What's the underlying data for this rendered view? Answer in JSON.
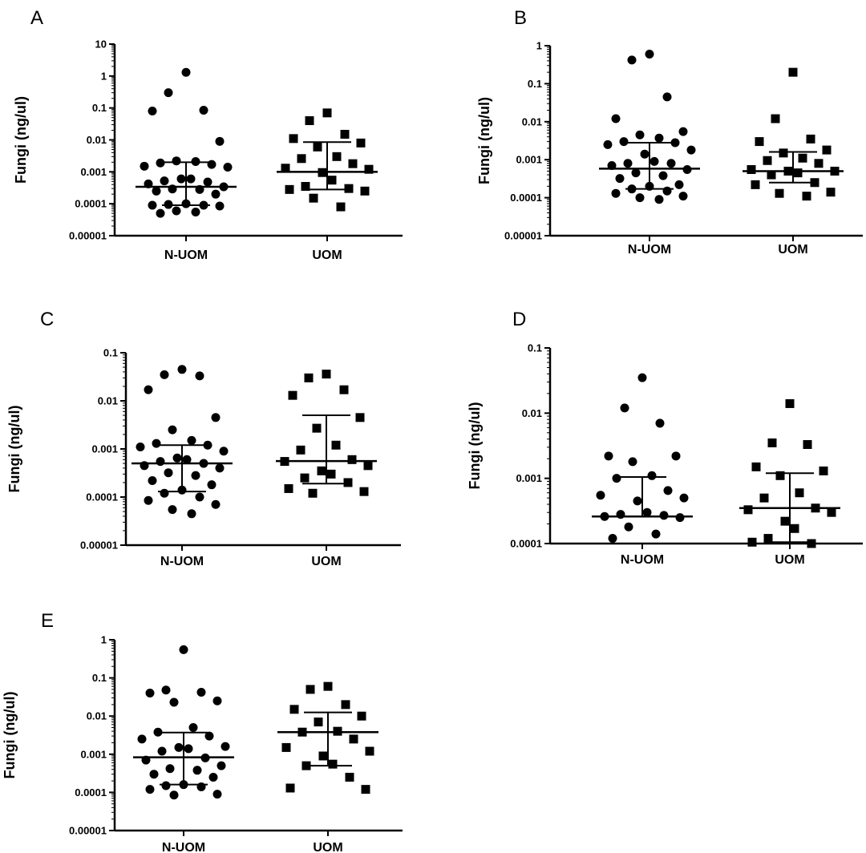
{
  "chart_data": [
    {
      "panel": "A",
      "type": "scatter",
      "ylabel": "Fungi (ng/ul)",
      "yscale": "log",
      "ylim": [
        1e-05,
        10
      ],
      "yticks": [
        "0.00001",
        "0.0001",
        "0.001",
        "0.01",
        "0.1",
        "1",
        "10"
      ],
      "categories": [
        "N-UOM",
        "UOM"
      ],
      "series": [
        {
          "marker": "circle",
          "values": [
            1.3,
            0.3,
            0.085,
            0.08,
            0.009,
            0.0022,
            0.0021,
            0.0019,
            0.0017,
            0.0015,
            0.0014,
            0.0006,
            0.0006,
            0.00052,
            0.00048,
            0.00042,
            0.00034,
            0.00029,
            0.00028,
            0.00025,
            0.0002,
            0.0001,
            9.5e-05,
            9e-05,
            9e-05,
            8.5e-05,
            6e-05,
            5.5e-05,
            5e-05
          ],
          "median": 0.00034,
          "q1": 9e-05,
          "q3": 0.002
        },
        {
          "marker": "square",
          "values": [
            0.07,
            0.04,
            0.015,
            0.011,
            0.008,
            0.006,
            0.003,
            0.0026,
            0.0018,
            0.0013,
            0.0012,
            0.00095,
            0.00055,
            0.00035,
            0.0003,
            0.00028,
            0.00025,
            0.00015,
            8e-05
          ],
          "median": 0.001,
          "q1": 0.00028,
          "q3": 0.0085
        }
      ]
    },
    {
      "panel": "B",
      "type": "scatter",
      "ylabel": "Fungi (ng/ul)",
      "yscale": "log",
      "ylim": [
        1e-05,
        1
      ],
      "yticks": [
        "0.00001",
        "0.0001",
        "0.001",
        "0.01",
        "0.1",
        "1"
      ],
      "categories": [
        "N-UOM",
        "UOM"
      ],
      "series": [
        {
          "marker": "circle",
          "values": [
            0.6,
            0.42,
            0.045,
            0.012,
            0.0055,
            0.0045,
            0.0037,
            0.003,
            0.0028,
            0.0025,
            0.0018,
            0.0014,
            0.0009,
            0.0008,
            0.0008,
            0.0007,
            0.00055,
            0.00045,
            0.00038,
            0.00032,
            0.00022,
            0.0002,
            0.00017,
            0.00015,
            0.00013,
            0.00011,
            0.0001,
            9e-05
          ],
          "median": 0.00058,
          "q1": 0.00017,
          "q3": 0.0028
        },
        {
          "marker": "square",
          "values": [
            0.2,
            0.012,
            0.0035,
            0.003,
            0.0018,
            0.0015,
            0.0011,
            0.00095,
            0.0008,
            0.00055,
            0.0005,
            0.0005,
            0.00045,
            0.0004,
            0.00025,
            0.00022,
            0.00014,
            0.00013,
            0.00011
          ],
          "median": 0.0005,
          "q1": 0.00025,
          "q3": 0.0016
        }
      ]
    },
    {
      "panel": "C",
      "type": "scatter",
      "ylabel": "Fungi (ng/ul)",
      "yscale": "log",
      "ylim": [
        1e-05,
        0.1
      ],
      "yticks": [
        "0.00001",
        "0.0001",
        "0.001",
        "0.01",
        "0.1"
      ],
      "categories": [
        "N-UOM",
        "UOM"
      ],
      "series": [
        {
          "marker": "circle",
          "values": [
            0.045,
            0.035,
            0.033,
            0.017,
            0.0045,
            0.0025,
            0.0015,
            0.0013,
            0.0012,
            0.0011,
            0.0009,
            0.00065,
            0.0006,
            0.00055,
            0.0005,
            0.00045,
            0.0004,
            0.00032,
            0.00028,
            0.00022,
            0.00018,
            0.00014,
            0.00012,
            0.0001,
            8.5e-05,
            7e-05,
            5.5e-05,
            4.5e-05
          ],
          "median": 0.0005,
          "q1": 0.00013,
          "q3": 0.0012
        },
        {
          "marker": "square",
          "values": [
            0.036,
            0.03,
            0.017,
            0.013,
            0.0045,
            0.0027,
            0.0012,
            0.00095,
            0.0006,
            0.00055,
            0.00045,
            0.00035,
            0.0003,
            0.00025,
            0.0002,
            0.00015,
            0.00013,
            0.00012
          ],
          "median": 0.00056,
          "q1": 0.00019,
          "q3": 0.005
        }
      ]
    },
    {
      "panel": "D",
      "type": "scatter",
      "ylabel": "Fungi (ng/ul)",
      "yscale": "log",
      "ylim": [
        0.0001,
        0.1
      ],
      "yticks": [
        "0.0001",
        "0.001",
        "0.01",
        "0.1"
      ],
      "categories": [
        "N-UOM",
        "UOM"
      ],
      "series": [
        {
          "marker": "circle",
          "values": [
            0.035,
            0.012,
            0.007,
            0.0022,
            0.0022,
            0.0018,
            0.0011,
            0.001,
            0.00065,
            0.00055,
            0.0005,
            0.00045,
            0.0003,
            0.00028,
            0.00027,
            0.00026,
            0.00025,
            0.00018,
            0.00014,
            0.00012
          ],
          "median": 0.00026,
          "q1": 0.00026,
          "q3": 0.00105
        },
        {
          "marker": "square",
          "values": [
            0.014,
            0.0035,
            0.0033,
            0.0015,
            0.0013,
            0.0011,
            0.0006,
            0.0005,
            0.00035,
            0.00033,
            0.0003,
            0.00022,
            0.00017,
            0.00012,
            0.0001,
            0.000105
          ],
          "median": 0.00035,
          "q1": 0.000105,
          "q3": 0.0012
        }
      ]
    },
    {
      "panel": "E",
      "type": "scatter",
      "ylabel": "Fungi (ng/ul)",
      "yscale": "log",
      "ylim": [
        1e-05,
        1
      ],
      "yticks": [
        "0.00001",
        "0.0001",
        "0.001",
        "0.01",
        "0.1",
        "1"
      ],
      "categories": [
        "N-UOM",
        "UOM"
      ],
      "series": [
        {
          "marker": "circle",
          "values": [
            0.55,
            0.048,
            0.042,
            0.04,
            0.025,
            0.023,
            0.005,
            0.0038,
            0.003,
            0.0025,
            0.0016,
            0.0015,
            0.0014,
            0.0012,
            0.0008,
            0.0007,
            0.0005,
            0.00042,
            0.00038,
            0.0003,
            0.00025,
            0.00016,
            0.00015,
            0.00014,
            0.00012,
            9e-05,
            8.5e-05
          ],
          "median": 0.00083,
          "q1": 0.00016,
          "q3": 0.0037
        },
        {
          "marker": "square",
          "values": [
            0.06,
            0.05,
            0.02,
            0.015,
            0.01,
            0.007,
            0.004,
            0.0038,
            0.0025,
            0.0015,
            0.0012,
            0.0009,
            0.00055,
            0.0005,
            0.00025,
            0.00013,
            0.00012
          ],
          "median": 0.0038,
          "q1": 0.0005,
          "q3": 0.0125
        }
      ]
    }
  ]
}
